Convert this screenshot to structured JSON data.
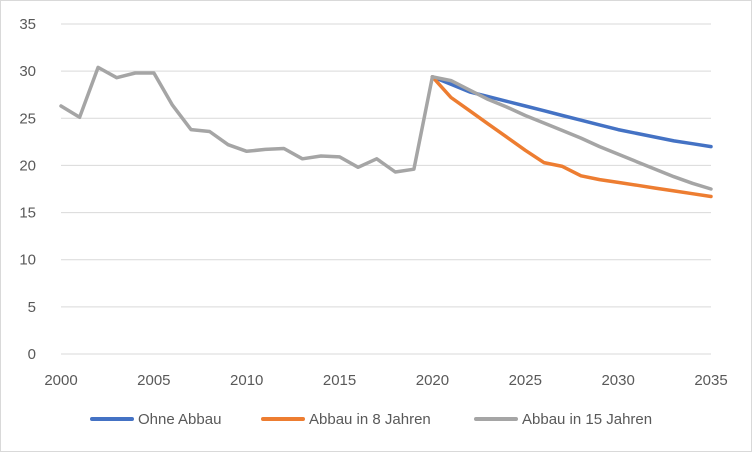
{
  "chart_data": {
    "type": "line",
    "title": "",
    "xlabel": "",
    "ylabel": "",
    "xlim": [
      2000,
      2035
    ],
    "ylim": [
      0,
      35
    ],
    "x_ticks": [
      "2000",
      "2005",
      "2010",
      "2015",
      "2020",
      "2025",
      "2030",
      "2035"
    ],
    "y_ticks": [
      "0",
      "5",
      "10",
      "15",
      "20",
      "25",
      "30",
      "35"
    ],
    "grid": "horizontal",
    "legend_position": "bottom",
    "series": [
      {
        "name": "Ohne Abbau",
        "color": "#4472c4",
        "x": [
          2020,
          2021,
          2022,
          2023,
          2024,
          2025,
          2026,
          2027,
          2028,
          2029,
          2030,
          2031,
          2032,
          2033,
          2034,
          2035
        ],
        "y": [
          29.4,
          28.6,
          27.8,
          27.3,
          26.8,
          26.3,
          25.8,
          25.3,
          24.8,
          24.3,
          23.8,
          23.4,
          23.0,
          22.6,
          22.3,
          22.0
        ]
      },
      {
        "name": "Abbau in 8 Jahren",
        "color": "#ed7d31",
        "x": [
          2020,
          2021,
          2022,
          2023,
          2024,
          2025,
          2026,
          2027,
          2028,
          2029,
          2030,
          2031,
          2032,
          2033,
          2034,
          2035
        ],
        "y": [
          29.4,
          27.2,
          25.8,
          24.4,
          23.0,
          21.6,
          20.3,
          19.9,
          18.9,
          18.5,
          18.2,
          17.9,
          17.6,
          17.3,
          17.0,
          16.7
        ]
      },
      {
        "name": "Abbau in 15 Jahren",
        "color": "#a5a5a5",
        "x": [
          2000,
          2001,
          2002,
          2003,
          2004,
          2005,
          2006,
          2007,
          2008,
          2009,
          2010,
          2011,
          2012,
          2013,
          2014,
          2015,
          2016,
          2017,
          2018,
          2019,
          2020,
          2021,
          2022,
          2023,
          2024,
          2025,
          2026,
          2027,
          2028,
          2029,
          2030,
          2031,
          2032,
          2033,
          2034,
          2035
        ],
        "y": [
          26.3,
          25.1,
          30.4,
          29.3,
          29.8,
          29.8,
          26.4,
          23.8,
          23.6,
          22.2,
          21.5,
          21.7,
          21.8,
          20.7,
          21.0,
          20.9,
          19.8,
          20.7,
          19.3,
          19.6,
          29.4,
          29.0,
          28.0,
          27.0,
          26.2,
          25.3,
          24.5,
          23.7,
          22.9,
          22.0,
          21.2,
          20.4,
          19.6,
          18.8,
          18.1,
          17.5
        ]
      }
    ]
  }
}
